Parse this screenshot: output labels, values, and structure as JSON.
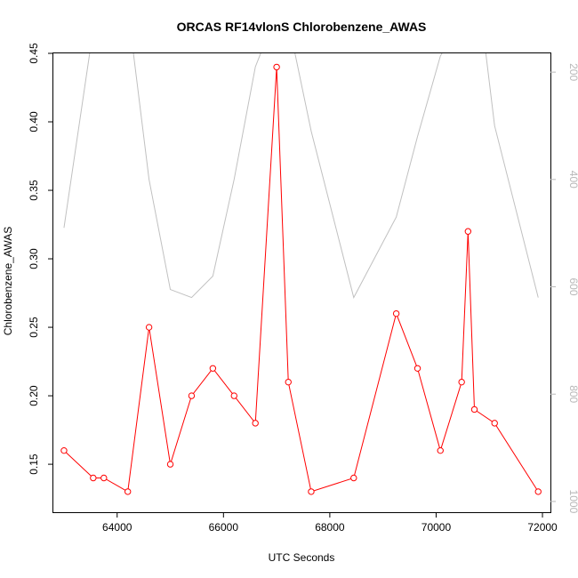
{
  "chart_data": {
    "type": "line",
    "title": "ORCAS RF14vlonS Chlorobenzene_AWAS",
    "xlabel": "UTC Seconds",
    "ylabel": "Chlorobenzene_AWAS",
    "xlim": [
      62800,
      72150
    ],
    "ylim": [
      0.115,
      0.45
    ],
    "x_ticks": [
      64000,
      66000,
      68000,
      70000,
      72000
    ],
    "x_tick_labels": [
      "64000",
      "66000",
      "68000",
      "70000",
      "72000"
    ],
    "y_ticks": [
      0.15,
      0.2,
      0.25,
      0.3,
      0.35,
      0.4,
      0.45
    ],
    "y_tick_labels": [
      "0.15",
      "0.20",
      "0.25",
      "0.30",
      "0.35",
      "0.40",
      "0.45"
    ],
    "y2_reversed": true,
    "y2lim": [
      165,
      1020
    ],
    "y2_ticks": [
      200,
      400,
      600,
      800,
      1000
    ],
    "y2_tick_labels": [
      "200",
      "400",
      "600",
      "800",
      "1000"
    ],
    "grid": false,
    "legend": "none",
    "series": [
      {
        "color": "#ff0000",
        "marker": "open-circle",
        "axis": "left",
        "x": [
          63000,
          63550,
          63750,
          64200,
          64600,
          65000,
          65400,
          65800,
          66200,
          66600,
          67000,
          67220,
          67650,
          68450,
          69250,
          69650,
          70080,
          70480,
          70600,
          70720,
          71100,
          71920
        ],
        "y": [
          0.16,
          0.14,
          0.14,
          0.13,
          0.25,
          0.15,
          0.2,
          0.22,
          0.2,
          0.18,
          0.44,
          0.21,
          0.13,
          0.14,
          0.26,
          0.22,
          0.16,
          0.21,
          0.32,
          0.19,
          0.18,
          0.13
        ]
      },
      {
        "color": "#c0c0c0",
        "marker": "none",
        "axis": "right",
        "x": [
          63000,
          63550,
          64250,
          64600,
          65000,
          65400,
          65800,
          66200,
          66600,
          67000,
          67250,
          67650,
          68450,
          69250,
          69650,
          70080,
          70480,
          70880,
          71100,
          71920
        ],
        "y": [
          490,
          120,
          120,
          400,
          605,
          620,
          580,
          400,
          190,
          90,
          120,
          310,
          620,
          470,
          320,
          170,
          100,
          120,
          300,
          620
        ]
      }
    ]
  }
}
